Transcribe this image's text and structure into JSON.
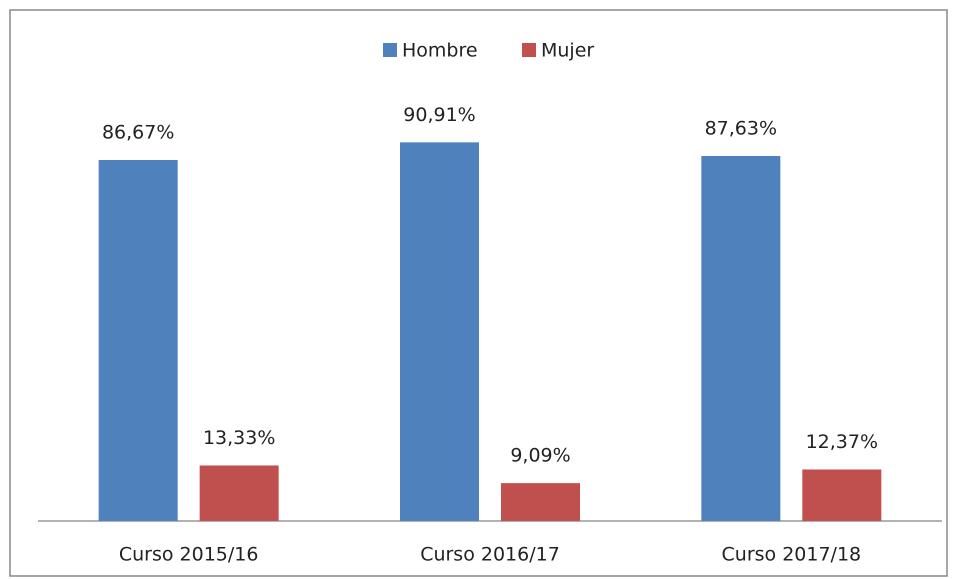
{
  "chart_data": {
    "type": "bar",
    "categories": [
      "Curso 2015/16",
      "Curso 2016/17",
      "Curso 2017/18"
    ],
    "series": [
      {
        "name": "Hombre",
        "color": "#4f81bd",
        "values": [
          86.67,
          90.91,
          87.63
        ],
        "value_labels": [
          "86,67%",
          "90,91%",
          "87,63%"
        ]
      },
      {
        "name": "Mujer",
        "color": "#c0504d",
        "values": [
          13.33,
          9.09,
          12.37
        ],
        "value_labels": [
          "13,33%",
          "9,09%",
          "12,37%"
        ]
      }
    ],
    "legend": "top"
  }
}
